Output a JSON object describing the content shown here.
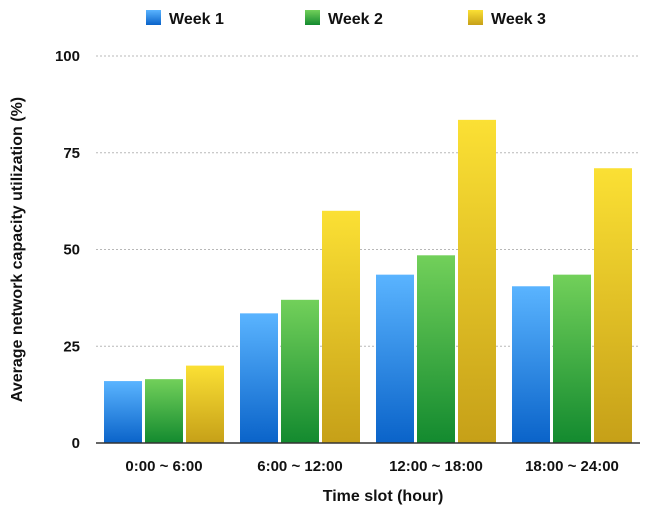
{
  "chart_data": {
    "type": "bar",
    "title": "",
    "xlabel": "Time slot (hour)",
    "ylabel": "Average network capacity utilization (%)",
    "ylim": [
      0,
      100
    ],
    "yticks": [
      0,
      25,
      50,
      75,
      100
    ],
    "categories": [
      "0:00 ~ 6:00",
      "6:00 ~ 12:00",
      "12:00 ~ 18:00",
      "18:00 ~ 24:00"
    ],
    "series": [
      {
        "name": "Week 1",
        "values": [
          16,
          33.5,
          43.5,
          40.5
        ]
      },
      {
        "name": "Week 2",
        "values": [
          16.5,
          37,
          48.5,
          43.5
        ]
      },
      {
        "name": "Week 3",
        "values": [
          20,
          60,
          83.5,
          71
        ]
      }
    ],
    "grid": true,
    "legend": "top"
  },
  "colors": {
    "Week 1": {
      "top": "#5ab4ff",
      "bottom": "#0a63c9"
    },
    "Week 2": {
      "top": "#72d05a",
      "bottom": "#138a2f"
    },
    "Week 3": {
      "top": "#fbe034",
      "bottom": "#c6a018"
    },
    "grid": "#b8b8b8",
    "axis": "#333333"
  }
}
